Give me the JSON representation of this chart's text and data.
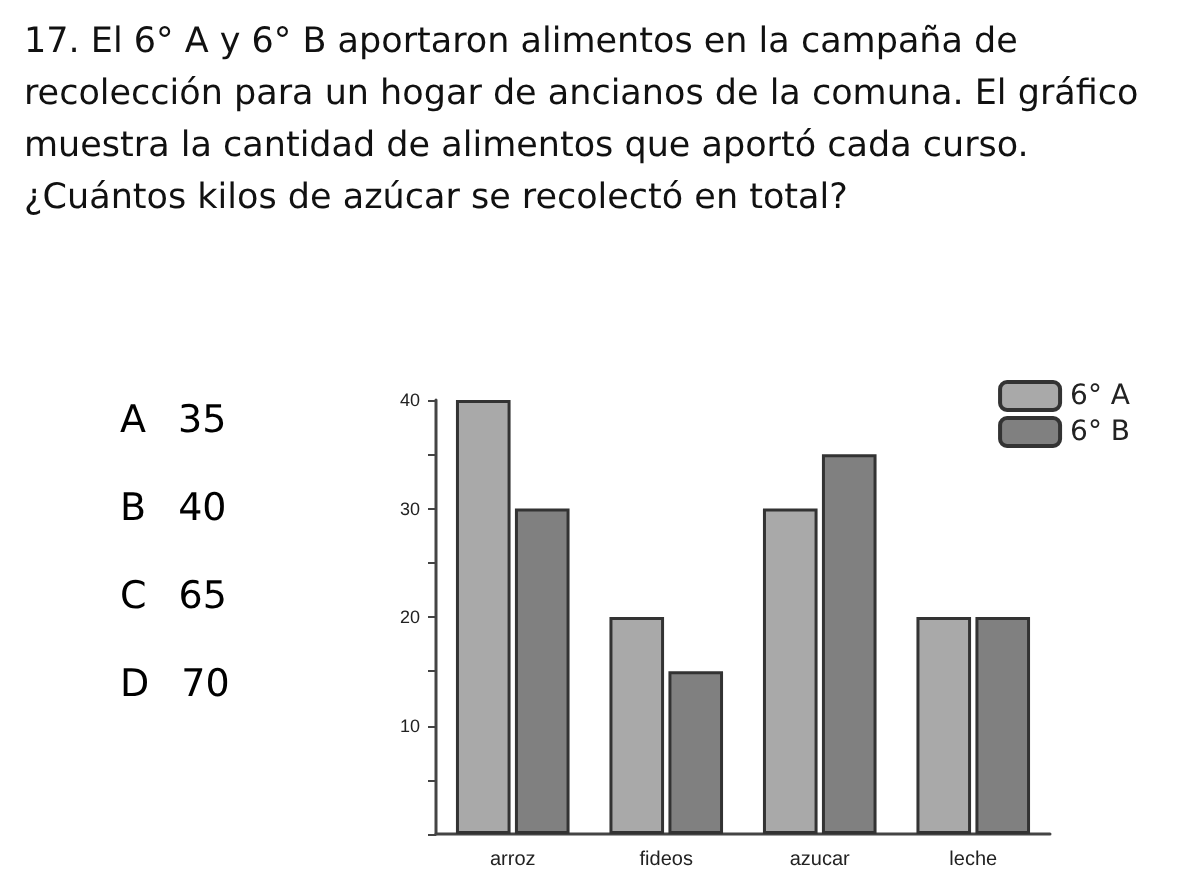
{
  "chart_data": {
    "type": "bar",
    "title": "17. El 6° A y 6° B aportaron alimentos en la campaña de recolección para un hogar de ancianos de la comuna. El gráfico muestra la cantidad de alimentos que aportó cada curso. ¿Cuántos kilos de azúcar se recolectó en total?",
    "annotations": [
      "A 35",
      "B 40",
      "C 65",
      "D 70"
    ],
    "categories": [
      "arroz",
      "fideos",
      "azucar",
      "leche"
    ],
    "series": [
      {
        "name": "6° A",
        "color": "#a9a9a9",
        "values": [
          40,
          20,
          30,
          20
        ]
      },
      {
        "name": "6° B",
        "color": "#808080",
        "values": [
          30,
          15,
          35,
          20
        ]
      }
    ],
    "ylim": [
      0,
      40
    ],
    "yticks": [
      {
        "value": 0,
        "label": null
      },
      {
        "value": 5,
        "label": null
      },
      10,
      {
        "value": 15,
        "label": null
      },
      20,
      {
        "value": 25,
        "label": null
      },
      30,
      {
        "value": 35,
        "label": null
      },
      40
    ],
    "grid": false,
    "legend": "top right"
  }
}
